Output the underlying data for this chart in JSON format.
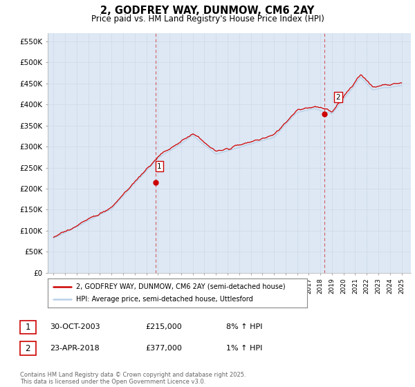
{
  "title": "2, GODFREY WAY, DUNMOW, CM6 2AY",
  "subtitle": "Price paid vs. HM Land Registry's House Price Index (HPI)",
  "ylim": [
    0,
    570000
  ],
  "yticks": [
    0,
    50000,
    100000,
    150000,
    200000,
    250000,
    300000,
    350000,
    400000,
    450000,
    500000,
    550000
  ],
  "ytick_labels": [
    "£0",
    "£50K",
    "£100K",
    "£150K",
    "£200K",
    "£250K",
    "£300K",
    "£350K",
    "£400K",
    "£450K",
    "£500K",
    "£550K"
  ],
  "hpi_color": "#b8d0e8",
  "price_color": "#cc0000",
  "vline_color": "#cc0000",
  "grid_color": "#d0d8e8",
  "bg_color": "#dde8f4",
  "sale1_x": 2003.83,
  "sale2_x": 2018.33,
  "marker1_value": 215000,
  "marker2_value": 377000,
  "legend_line1": "2, GODFREY WAY, DUNMOW, CM6 2AY (semi-detached house)",
  "legend_line2": "HPI: Average price, semi-detached house, Uttlesford",
  "footer": "Contains HM Land Registry data © Crown copyright and database right 2025.\nThis data is licensed under the Open Government Licence v3.0."
}
